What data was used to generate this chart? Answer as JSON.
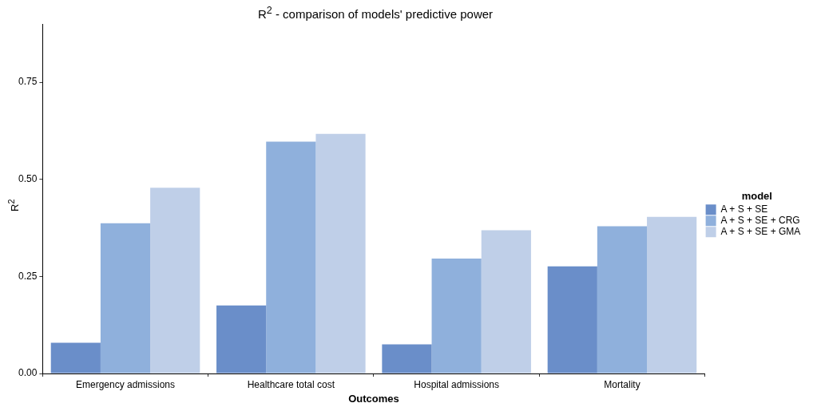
{
  "chart_data": {
    "type": "bar",
    "title": "R$^{2}$ - comparison of models' predictive power",
    "xlabel": "Outcomes",
    "ylabel": "R$^{2}$",
    "legend_title": "model",
    "categories": [
      "Emergency admissions",
      "Healthcare total cost",
      "Hospital admissions",
      "Mortality"
    ],
    "series": [
      {
        "name": "A + S + SE",
        "color": "#6a8ec9",
        "values": [
          0.079,
          0.175,
          0.075,
          0.276
        ]
      },
      {
        "name": "A + S + SE + CRG",
        "color": "#8fb0dc",
        "values": [
          0.387,
          0.597,
          0.296,
          0.379
        ]
      },
      {
        "name": "A + S + SE + GMA",
        "color": "#bfcfe8",
        "values": [
          0.478,
          0.617,
          0.369,
          0.403
        ]
      }
    ],
    "ylim": [
      0,
      0.9
    ],
    "yticks": [
      {
        "value": 0,
        "label": "0.00"
      },
      {
        "value": 0.25,
        "label": "0.25"
      },
      {
        "value": 0.5,
        "label": "0.50"
      },
      {
        "value": 0.75,
        "label": "0.75"
      }
    ],
    "grid": false,
    "legend": "right"
  }
}
